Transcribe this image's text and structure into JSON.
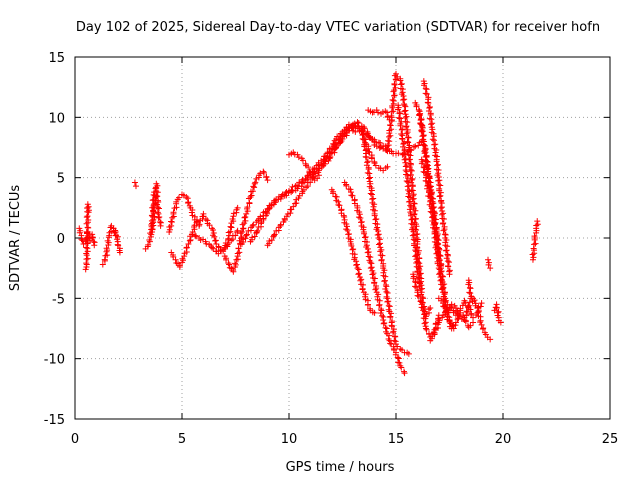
{
  "chart_data": {
    "type": "scatter",
    "title": "Day 102 of 2025, Sidereal Day-to-day VTEC variation (SDTVAR) for receiver hofn",
    "xlabel": "GPS time / hours",
    "ylabel": "SDTVAR / TECUs",
    "xlim": [
      0,
      25
    ],
    "ylim": [
      -15,
      15
    ],
    "xticks": [
      0,
      5,
      10,
      15,
      20,
      25
    ],
    "yticks": [
      -15,
      -10,
      -5,
      0,
      5,
      10,
      15
    ],
    "xtick_labels": [
      "0",
      "5",
      "10",
      "15",
      "20",
      "25"
    ],
    "ytick_labels": [
      "-15",
      "-10",
      "-5",
      "0",
      "5",
      "10",
      "15"
    ],
    "grid": true,
    "marker": "+",
    "color": "#ff0000",
    "series": [
      {
        "name": "s1",
        "x": [
          0.2,
          0.3,
          0.4,
          0.5,
          0.6,
          0.7,
          0.8,
          0.9
        ],
        "y": [
          0.8,
          0.2,
          -0.5,
          -0.3,
          0.5,
          -0.2,
          0.3,
          -0.6
        ]
      },
      {
        "name": "s2",
        "x": [
          0.5,
          0.55,
          0.6,
          0.65
        ],
        "y": [
          -2.6,
          -2.2,
          2.8,
          2.3
        ]
      },
      {
        "name": "s3",
        "x": [
          1.3,
          1.4,
          1.5,
          1.6,
          1.7,
          1.8,
          1.9,
          2.0,
          2.1
        ],
        "y": [
          -2.2,
          -1.9,
          -1.0,
          0.2,
          1.0,
          0.8,
          0.2,
          -0.3,
          -1.2
        ]
      },
      {
        "name": "s4",
        "x": [
          1.8,
          1.9,
          2.0
        ],
        "y": [
          0.8,
          0.5,
          0.1
        ]
      },
      {
        "name": "s5",
        "x": [
          2.8,
          2.85
        ],
        "y": [
          4.6,
          4.3
        ]
      },
      {
        "name": "s6",
        "x": [
          3.3,
          3.4,
          3.5,
          3.6,
          3.7,
          3.8,
          3.9,
          4.0
        ],
        "y": [
          -0.9,
          -0.7,
          -0.3,
          1.2,
          3.8,
          4.5,
          2.0,
          1.0
        ]
      },
      {
        "name": "s7",
        "x": [
          3.6,
          3.65,
          3.7,
          3.75,
          3.8
        ],
        "y": [
          0.5,
          1.3,
          2.4,
          3.1,
          3.5
        ]
      },
      {
        "name": "s8",
        "x": [
          4.4,
          4.6,
          4.8,
          5.0,
          5.2,
          5.4,
          5.6,
          5.8,
          6.0,
          6.2,
          6.4,
          6.6,
          6.8,
          7.0,
          7.2,
          7.4,
          7.6
        ],
        "y": [
          0.5,
          2.0,
          3.2,
          3.6,
          3.4,
          2.5,
          1.5,
          1.0,
          2.0,
          1.2,
          0.8,
          -0.5,
          -1.0,
          -0.8,
          0.2,
          1.8,
          2.5
        ]
      },
      {
        "name": "s9",
        "x": [
          4.5,
          4.7,
          4.9,
          5.1,
          5.3,
          5.5,
          5.7
        ],
        "y": [
          -1.2,
          -1.8,
          -2.4,
          -1.5,
          -0.5,
          0.5,
          1.5
        ]
      },
      {
        "name": "s10",
        "x": [
          5.5,
          5.8,
          6.1,
          6.4,
          6.7,
          7.0,
          7.3,
          7.6
        ],
        "y": [
          0.3,
          0.0,
          -0.3,
          -0.8,
          -1.3,
          -0.9,
          -0.2,
          0.6
        ]
      },
      {
        "name": "s11",
        "x": [
          7.0,
          7.2,
          7.4,
          7.6,
          7.8,
          8.0,
          8.2,
          8.4,
          8.6,
          8.8,
          9.0
        ],
        "y": [
          -1.5,
          -2.2,
          -2.8,
          -1.5,
          0.5,
          2.0,
          3.4,
          4.5,
          5.2,
          5.5,
          4.8
        ]
      },
      {
        "name": "s12",
        "x": [
          7.8,
          8.0,
          8.3,
          8.6,
          8.9,
          9.2,
          9.5,
          9.8,
          10.1,
          10.4,
          10.7,
          11.0,
          11.3,
          11.6,
          11.9,
          12.2,
          12.5,
          12.8,
          13.1
        ],
        "y": [
          -0.5,
          0.2,
          1.0,
          1.6,
          2.2,
          2.8,
          3.2,
          3.5,
          3.8,
          4.1,
          4.6,
          5.2,
          5.7,
          6.2,
          7.2,
          8.2,
          8.8,
          9.4,
          8.8
        ]
      },
      {
        "name": "s13",
        "x": [
          8.2,
          8.5,
          8.8,
          9.1,
          9.4,
          9.7,
          10.0,
          10.3,
          10.6,
          10.9,
          11.2,
          11.5,
          11.8,
          12.1,
          12.4,
          12.7,
          13.0,
          13.3,
          13.6,
          13.9,
          14.2,
          14.5
        ],
        "y": [
          -0.3,
          0.5,
          1.5,
          2.5,
          3.2,
          3.6,
          3.9,
          4.3,
          4.7,
          5.2,
          5.8,
          6.4,
          7.0,
          7.6,
          8.4,
          9.0,
          9.4,
          9.1,
          8.6,
          8.2,
          7.9,
          7.6
        ]
      },
      {
        "name": "s14",
        "x": [
          9.0,
          9.3,
          9.6,
          9.9,
          10.2,
          10.5,
          10.8,
          11.1,
          11.4,
          11.7,
          12.0,
          12.3,
          12.6,
          12.9,
          13.2,
          13.5,
          13.8,
          14.1,
          14.4,
          14.7,
          15.0,
          15.3,
          15.6,
          15.9,
          16.2
        ],
        "y": [
          -0.6,
          0.2,
          1.0,
          1.8,
          2.6,
          3.5,
          4.2,
          5.0,
          5.6,
          6.4,
          7.1,
          7.8,
          8.6,
          9.3,
          9.6,
          9.2,
          8.3,
          7.6,
          7.4,
          7.2,
          7.0,
          6.9,
          7.2,
          7.6,
          8.0
        ]
      },
      {
        "name": "s15",
        "x": [
          10.0,
          10.2,
          10.4,
          10.6,
          10.8,
          11.0,
          11.2,
          11.4
        ],
        "y": [
          6.9,
          7.1,
          6.9,
          6.6,
          6.0,
          5.4,
          4.8,
          5.2
        ]
      },
      {
        "name": "s16",
        "x": [
          11.6,
          11.9,
          12.2,
          12.5,
          12.8,
          13.1,
          13.4,
          13.7,
          14.0,
          14.2,
          14.4,
          14.6
        ],
        "y": [
          6.0,
          6.6,
          7.5,
          8.2,
          8.9,
          9.3,
          8.8,
          7.4,
          6.2,
          5.8,
          5.6,
          5.9
        ]
      },
      {
        "name": "s17",
        "x": [
          12.0,
          12.3,
          12.6,
          12.9,
          13.2,
          13.5,
          13.8,
          14.0
        ],
        "y": [
          4.0,
          3.0,
          1.5,
          -0.5,
          -2.5,
          -4.5,
          -6.0,
          -6.2
        ]
      },
      {
        "name": "s18",
        "x": [
          12.6,
          12.9,
          13.2,
          13.5,
          13.8,
          14.1,
          14.4,
          14.7,
          15.0,
          15.2,
          15.4
        ],
        "y": [
          4.6,
          3.8,
          2.5,
          0.5,
          -2.0,
          -4.5,
          -6.8,
          -8.5,
          -9.5,
          -10.6,
          -11.2
        ]
      },
      {
        "name": "s19",
        "x": [
          13.4,
          13.6,
          13.8,
          14.0,
          14.2,
          14.4,
          14.6,
          14.8,
          15.0,
          15.2,
          15.4,
          15.6
        ],
        "y": [
          9.2,
          7.0,
          4.5,
          2.0,
          0.0,
          -2.5,
          -5.0,
          -7.0,
          -8.8,
          -9.2,
          -9.5,
          -9.6
        ]
      },
      {
        "name": "s20",
        "x": [
          13.7,
          13.9,
          14.1,
          14.3,
          14.5,
          14.7
        ],
        "y": [
          10.6,
          10.4,
          10.6,
          10.3,
          10.5,
          9.8
        ]
      },
      {
        "name": "s21",
        "x": [
          14.6,
          14.8,
          15.0,
          15.2,
          15.4,
          15.6,
          15.8,
          16.0,
          16.2,
          16.4,
          16.6,
          16.8,
          17.0
        ],
        "y": [
          7.2,
          10.0,
          13.6,
          13.2,
          11.0,
          7.5,
          3.5,
          -0.5,
          -4.5,
          -7.5,
          -8.2,
          -7.6,
          -6.4
        ]
      },
      {
        "name": "s22",
        "x": [
          15.1,
          15.3,
          15.5,
          15.7,
          15.9,
          16.1
        ],
        "y": [
          11.0,
          8.5,
          5.5,
          2.0,
          -1.0,
          -4.0
        ]
      },
      {
        "name": "s23",
        "x": [
          15.9,
          16.1,
          16.3,
          16.5,
          16.7,
          16.9,
          17.1,
          17.3,
          17.5,
          17.7
        ],
        "y": [
          11.2,
          10.5,
          8.0,
          5.5,
          3.0,
          0.5,
          -2.5,
          -5.0,
          -6.8,
          -7.5
        ]
      },
      {
        "name": "s24",
        "x": [
          15.8,
          16.0,
          16.2,
          16.4,
          16.6
        ],
        "y": [
          -3.0,
          -4.5,
          -5.5,
          -6.5,
          -5.8
        ]
      },
      {
        "name": "s25",
        "x": [
          16.2,
          16.4,
          16.6,
          16.8,
          17.0,
          17.2,
          17.4
        ],
        "y": [
          6.5,
          5.0,
          3.0,
          0.5,
          -2.5,
          -4.5,
          -6.2
        ]
      },
      {
        "name": "s26",
        "x": [
          16.1,
          16.3,
          16.5,
          16.7,
          16.9,
          17.1
        ],
        "y": [
          10.5,
          8.0,
          5.5,
          3.0,
          0.0,
          -2.5
        ]
      },
      {
        "name": "s27",
        "x": [
          16.3,
          16.5,
          16.7,
          16.9,
          17.1,
          17.3,
          17.5
        ],
        "y": [
          13.0,
          11.5,
          9.0,
          6.5,
          3.0,
          0.0,
          -3.0
        ]
      },
      {
        "name": "s28",
        "x": [
          16.6,
          16.8,
          17.0,
          17.2,
          17.4,
          17.6,
          17.8,
          18.0,
          18.2,
          18.4,
          18.6,
          18.8,
          19.0,
          19.2,
          19.4
        ],
        "y": [
          -8.5,
          -8.0,
          -7.0,
          -6.4,
          -6.0,
          -5.5,
          -5.8,
          -6.5,
          -6.8,
          -5.6,
          -5.0,
          -5.8,
          -7.2,
          -8.0,
          -8.4
        ]
      },
      {
        "name": "s29",
        "x": [
          17.0,
          17.2,
          17.4,
          17.6,
          17.8,
          18.0,
          18.2,
          18.4,
          18.6
        ],
        "y": [
          -5.0,
          -5.4,
          -6.5,
          -7.5,
          -7.0,
          -6.2,
          -6.6,
          -7.4,
          -7.0
        ]
      },
      {
        "name": "s30",
        "x": [
          17.6,
          17.8,
          18.0,
          18.2,
          18.4,
          18.6,
          18.8,
          19.0
        ],
        "y": [
          -5.8,
          -6.4,
          -6.0,
          -5.2,
          -5.8,
          -6.6,
          -6.2,
          -5.4
        ]
      },
      {
        "name": "s31",
        "x": [
          18.4,
          18.5
        ],
        "y": [
          -3.5,
          -5.0
        ]
      },
      {
        "name": "s32",
        "x": [
          19.3,
          19.4
        ],
        "y": [
          -1.8,
          -2.5
        ]
      },
      {
        "name": "s33",
        "x": [
          19.6,
          19.7,
          19.8,
          19.9
        ],
        "y": [
          -6.0,
          -5.5,
          -6.6,
          -7.0
        ]
      },
      {
        "name": "s34",
        "x": [
          21.4,
          21.45,
          21.5,
          21.55,
          21.6
        ],
        "y": [
          -1.8,
          -1.0,
          0.0,
          0.8,
          1.4
        ]
      }
    ]
  }
}
